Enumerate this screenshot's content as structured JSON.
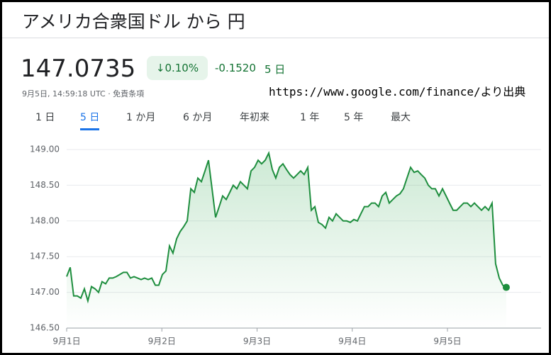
{
  "header": {
    "title": "アメリカ合衆国ドル から 円",
    "price": "147.0735",
    "change_pct": "↓0.10%",
    "change": "-0.1520",
    "period": "5 日",
    "timestamp": "9月5日, 14:59:18 UTC · 免責条項"
  },
  "source": "https://www.google.com/finance/より出典",
  "tabs": [
    "1 日",
    "5 日",
    "1 か月",
    "6 か月",
    "年初来",
    "1 年",
    "5 年",
    "最大"
  ],
  "selected_tab": 1,
  "chart_data": {
    "type": "line",
    "color": "#1e8e3e",
    "grid": true,
    "xlim": [
      0,
      4.95
    ],
    "xticks": [
      {
        "value": 0,
        "label": "9月1日"
      },
      {
        "value": 1,
        "label": "9月2日"
      },
      {
        "value": 2,
        "label": "9月3日"
      },
      {
        "value": 3,
        "label": "9月4日"
      },
      {
        "value": 4,
        "label": "9月5日"
      }
    ],
    "ylim": [
      146.5,
      149
    ],
    "yticks": [
      {
        "value": 146.5,
        "label": "146.50"
      },
      {
        "value": 147,
        "label": "147.00"
      },
      {
        "value": 147.5,
        "label": "147.50"
      },
      {
        "value": 148,
        "label": "148.00"
      },
      {
        "value": 148.5,
        "label": "148.50"
      },
      {
        "value": 149,
        "label": "149.00"
      }
    ],
    "x": [
      0,
      0.037,
      0.074,
      0.112,
      0.149,
      0.186,
      0.223,
      0.261,
      0.298,
      0.335,
      0.372,
      0.41,
      0.447,
      0.484,
      0.521,
      0.559,
      0.596,
      0.633,
      0.67,
      0.708,
      0.745,
      0.782,
      0.819,
      0.857,
      0.894,
      0.931,
      0.968,
      1.006,
      1.043,
      1.08,
      1.117,
      1.155,
      1.192,
      1.229,
      1.266,
      1.304,
      1.341,
      1.378,
      1.415,
      1.453,
      1.49,
      1.527,
      1.564,
      1.602,
      1.639,
      1.676,
      1.713,
      1.75,
      1.788,
      1.825,
      1.862,
      1.899,
      1.937,
      1.974,
      2.011,
      2.048,
      2.086,
      2.123,
      2.16,
      2.197,
      2.235,
      2.272,
      2.309,
      2.346,
      2.384,
      2.421,
      2.458,
      2.495,
      2.533,
      2.57,
      2.607,
      2.644,
      2.682,
      2.719,
      2.756,
      2.793,
      2.831,
      2.868,
      2.905,
      2.942,
      2.98,
      3.017,
      3.054,
      3.091,
      3.128,
      3.166,
      3.203,
      3.24,
      3.277,
      3.315,
      3.352,
      3.389,
      3.426,
      3.464,
      3.501,
      3.538,
      3.575,
      3.613,
      3.65,
      3.687,
      3.724,
      3.762,
      3.799,
      3.836,
      3.873,
      3.911,
      3.948,
      3.985,
      4.022,
      4.06,
      4.097,
      4.134,
      4.171,
      4.209,
      4.246,
      4.283,
      4.32,
      4.358,
      4.395,
      4.432,
      4.469,
      4.506,
      4.544,
      4.581,
      4.618
    ],
    "values": [
      147.22,
      147.35,
      146.95,
      146.95,
      146.92,
      147.05,
      146.88,
      147.08,
      147.05,
      147.0,
      147.15,
      147.12,
      147.2,
      147.2,
      147.22,
      147.25,
      147.28,
      147.28,
      147.2,
      147.22,
      147.2,
      147.18,
      147.2,
      147.18,
      147.2,
      147.1,
      147.1,
      147.25,
      147.3,
      147.65,
      147.55,
      147.75,
      147.85,
      147.92,
      148.0,
      148.45,
      148.4,
      148.6,
      148.55,
      148.7,
      148.85,
      148.45,
      148.05,
      148.2,
      148.35,
      148.3,
      148.4,
      148.5,
      148.45,
      148.55,
      148.5,
      148.45,
      148.7,
      148.75,
      148.85,
      148.8,
      148.85,
      148.95,
      148.72,
      148.6,
      148.75,
      148.8,
      148.72,
      148.65,
      148.6,
      148.65,
      148.7,
      148.65,
      148.75,
      148.15,
      148.2,
      147.98,
      147.95,
      147.9,
      148.05,
      148.0,
      148.1,
      148.05,
      148.0,
      148.0,
      147.98,
      148.02,
      148.0,
      148.1,
      148.2,
      148.2,
      148.25,
      148.25,
      148.2,
      148.35,
      148.4,
      148.25,
      148.3,
      148.35,
      148.38,
      148.45,
      148.6,
      148.75,
      148.68,
      148.7,
      148.65,
      148.6,
      148.5,
      148.45,
      148.45,
      148.35,
      148.45,
      148.35,
      148.25,
      148.15,
      148.15,
      148.2,
      148.25,
      148.25,
      148.2,
      148.25,
      148.2,
      148.15,
      148.2,
      148.15,
      148.25,
      147.4,
      147.2,
      147.1,
      147.07
    ]
  }
}
